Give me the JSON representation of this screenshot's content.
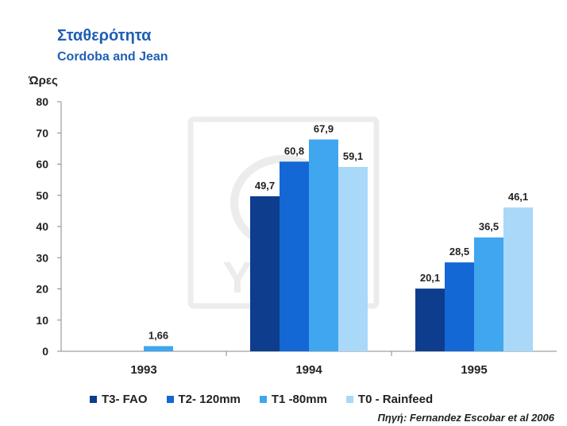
{
  "header": {
    "title": "Σταθερότητα",
    "subtitle": "Cordoba and Jean"
  },
  "source": "Πηγή: Fernandez Escobar et al 2006",
  "watermark": "YARA",
  "chart_data": {
    "type": "bar",
    "ylabel": "Ώρες",
    "xlabel": "",
    "ylim": [
      0,
      80
    ],
    "yticks": [
      0,
      10,
      20,
      30,
      40,
      50,
      60,
      70,
      80
    ],
    "grid": false,
    "legend_position": "bottom",
    "categories": [
      "1993",
      "1994",
      "1995"
    ],
    "series": [
      {
        "name": "T3- FAO",
        "color": "#0d3d8c",
        "values": [
          null,
          49.7,
          20.1
        ],
        "labels": [
          "",
          "49,7",
          "20,1"
        ]
      },
      {
        "name": "T2- 120mm",
        "color": "#1368d6",
        "values": [
          null,
          60.8,
          28.5
        ],
        "labels": [
          "",
          "60,8",
          "28,5"
        ]
      },
      {
        "name": "T1 -80mm",
        "color": "#3fa6ef",
        "values": [
          1.66,
          67.9,
          36.5
        ],
        "labels": [
          "1,66",
          "67,9",
          "36,5"
        ]
      },
      {
        "name": "T0 - Rainfeed",
        "color": "#a9d8f8",
        "values": [
          null,
          59.1,
          46.1
        ],
        "labels": [
          "",
          "59,1",
          "46,1"
        ]
      }
    ]
  }
}
